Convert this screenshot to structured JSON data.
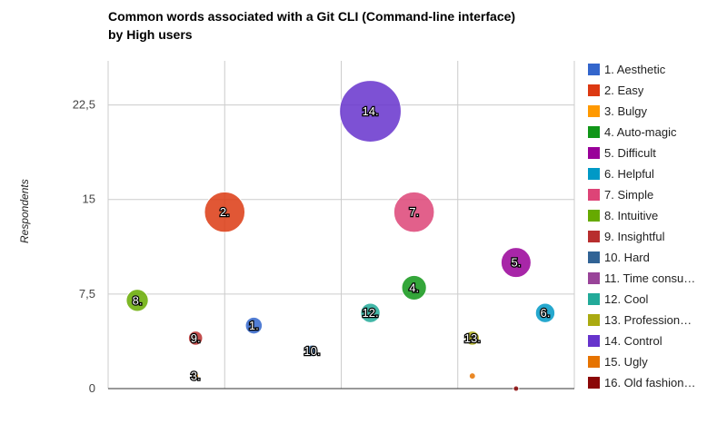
{
  "chart_data": {
    "type": "bubble",
    "title_line1": "Common words associated with a Git CLI (Command-line interface)",
    "title_line2": "by High users",
    "ylabel": "Respondents",
    "ylim": [
      0,
      26
    ],
    "yticks": [
      0,
      7.5,
      15,
      22.5
    ],
    "ytick_labels": [
      "0",
      "7,5",
      "15",
      "22,5"
    ],
    "xlim": [
      0,
      16
    ],
    "grid": true,
    "legend_position": "right",
    "bubbles": [
      {
        "label": "1.",
        "legend": "1. Aesthetic",
        "x": 5.0,
        "y": 5,
        "color": "#3366cc"
      },
      {
        "label": "2.",
        "legend": "2. Easy",
        "x": 4.0,
        "y": 14,
        "color": "#dc3912"
      },
      {
        "label": "3.",
        "legend": "3. Bulgy",
        "x": 3.0,
        "y": 1,
        "color": "#ff9900"
      },
      {
        "label": "4.",
        "legend": "4. Auto-magic",
        "x": 10.5,
        "y": 8,
        "color": "#109618"
      },
      {
        "label": "5.",
        "legend": "5. Difficult",
        "x": 14.0,
        "y": 10,
        "color": "#990099"
      },
      {
        "label": "6.",
        "legend": "6. Helpful",
        "x": 15.0,
        "y": 6,
        "color": "#0099c6"
      },
      {
        "label": "7.",
        "legend": "7. Simple",
        "x": 10.5,
        "y": 14,
        "color": "#dd4477"
      },
      {
        "label": "8.",
        "legend": "8. Intuitive",
        "x": 1.0,
        "y": 7,
        "color": "#66aa00"
      },
      {
        "label": "9.",
        "legend": "9. Insightful",
        "x": 3.0,
        "y": 4,
        "color": "#b82e2e"
      },
      {
        "label": "10.",
        "legend": "10. Hard",
        "x": 7.0,
        "y": 3,
        "color": "#316395"
      },
      {
        "label": "11.",
        "legend": "11. Time consu…",
        "x": 0,
        "y": 0,
        "color": "#994499",
        "hidden": true
      },
      {
        "label": "12.",
        "legend": "12. Cool",
        "x": 9.0,
        "y": 6,
        "color": "#22aa99"
      },
      {
        "label": "13.",
        "legend": "13. Profession…",
        "x": 12.5,
        "y": 4,
        "color": "#aaaa11"
      },
      {
        "label": "14.",
        "legend": "14. Control",
        "x": 9.0,
        "y": 22,
        "color": "#6633cc"
      },
      {
        "label": "",
        "legend": "15. Ugly",
        "x": 12.5,
        "y": 1,
        "color": "#e67300"
      },
      {
        "label": "",
        "legend": "16. Old fashion…",
        "x": 14.0,
        "y": 0,
        "color": "#8b0707"
      }
    ]
  }
}
